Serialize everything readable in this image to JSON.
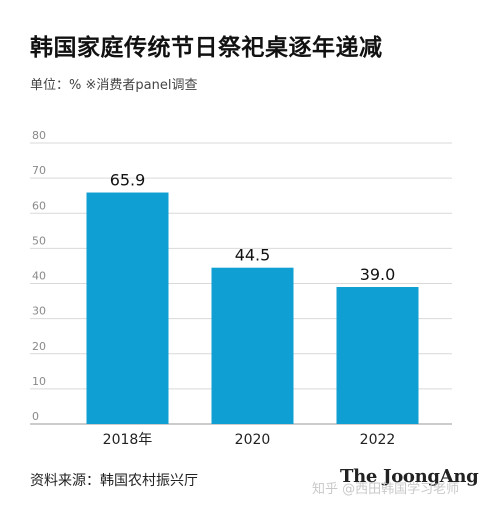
{
  "title": "韩国家庭传统节日祭祀桌逐年递减",
  "subtitle": "单位：%  ※消费者panel调查",
  "source": "资料来源：韩国农村振兴厅",
  "brand": "The JoongAng",
  "watermark": "知乎 @西田韩国学习老师",
  "colors": {
    "bar": "#0f9fd2",
    "grid": "#d9d9d9",
    "axis": "#999999"
  },
  "chart_data": {
    "type": "bar",
    "categories": [
      "2018年",
      "2020",
      "2022"
    ],
    "values": [
      65.9,
      44.5,
      39.0
    ],
    "value_labels": [
      "65.9",
      "44.5",
      "39.0"
    ],
    "ylim": [
      0,
      80
    ],
    "yticks": [
      "0",
      "10",
      "20",
      "30",
      "40",
      "50",
      "60",
      "70",
      "80"
    ],
    "grid": true
  }
}
